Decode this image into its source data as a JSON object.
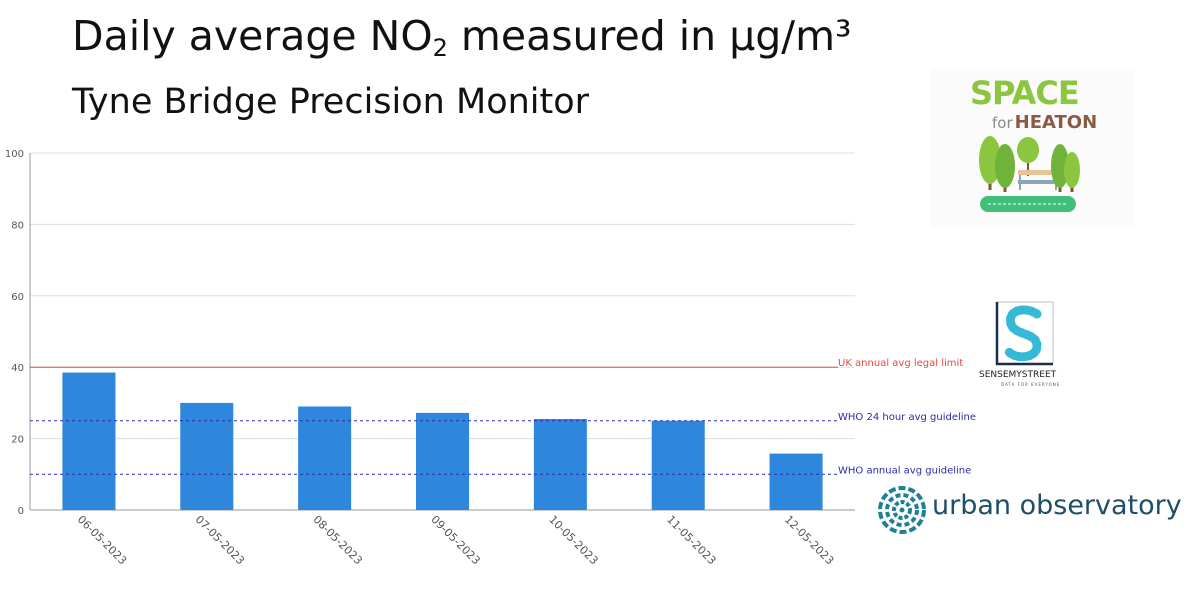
{
  "header": {
    "title_main": "Daily average NO",
    "title_sub": "2",
    "title_rest": " measured in µg/m³",
    "subtitle": "Tyne Bridge Precision Monitor"
  },
  "chart_data": {
    "type": "bar",
    "categories": [
      "06-05-2023",
      "07-05-2023",
      "08-05-2023",
      "09-05-2023",
      "10-05-2023",
      "11-05-2023",
      "12-05-2023"
    ],
    "values": [
      38.5,
      30,
      29,
      27.2,
      25.5,
      25,
      15.8
    ],
    "ylim": [
      0,
      100
    ],
    "yticks": [
      0,
      20,
      40,
      60,
      80,
      100
    ],
    "grid": true,
    "bar_color": "#2f86dd",
    "reference_lines": [
      {
        "label": "UK annual avg legal limit",
        "value": 40,
        "color": "#e8483f",
        "style": "solid"
      },
      {
        "label": "WHO 24 hour avg guideline",
        "value": 25,
        "color": "#2b2bb0",
        "style": "dashed"
      },
      {
        "label": "WHO annual avg guideline",
        "value": 10,
        "color": "#2b2bb0",
        "style": "dashed"
      }
    ]
  },
  "logos": {
    "space_for_heaton": {
      "line1": "SPACE",
      "for": "for",
      "heaton": "HEATON"
    },
    "sense_my_street": {
      "name": "SENSEMYSTREET",
      "tagline": "DATA FOR EVERYONE"
    },
    "urban_observatory": {
      "name": "urban observatory"
    }
  },
  "colors": {
    "space_green": "#8cc63f",
    "heaton_brown": "#8a5a44",
    "sense_navy": "#1d2b53",
    "sense_cyan": "#35b9d6",
    "uo_teal": "#1e7f96"
  }
}
